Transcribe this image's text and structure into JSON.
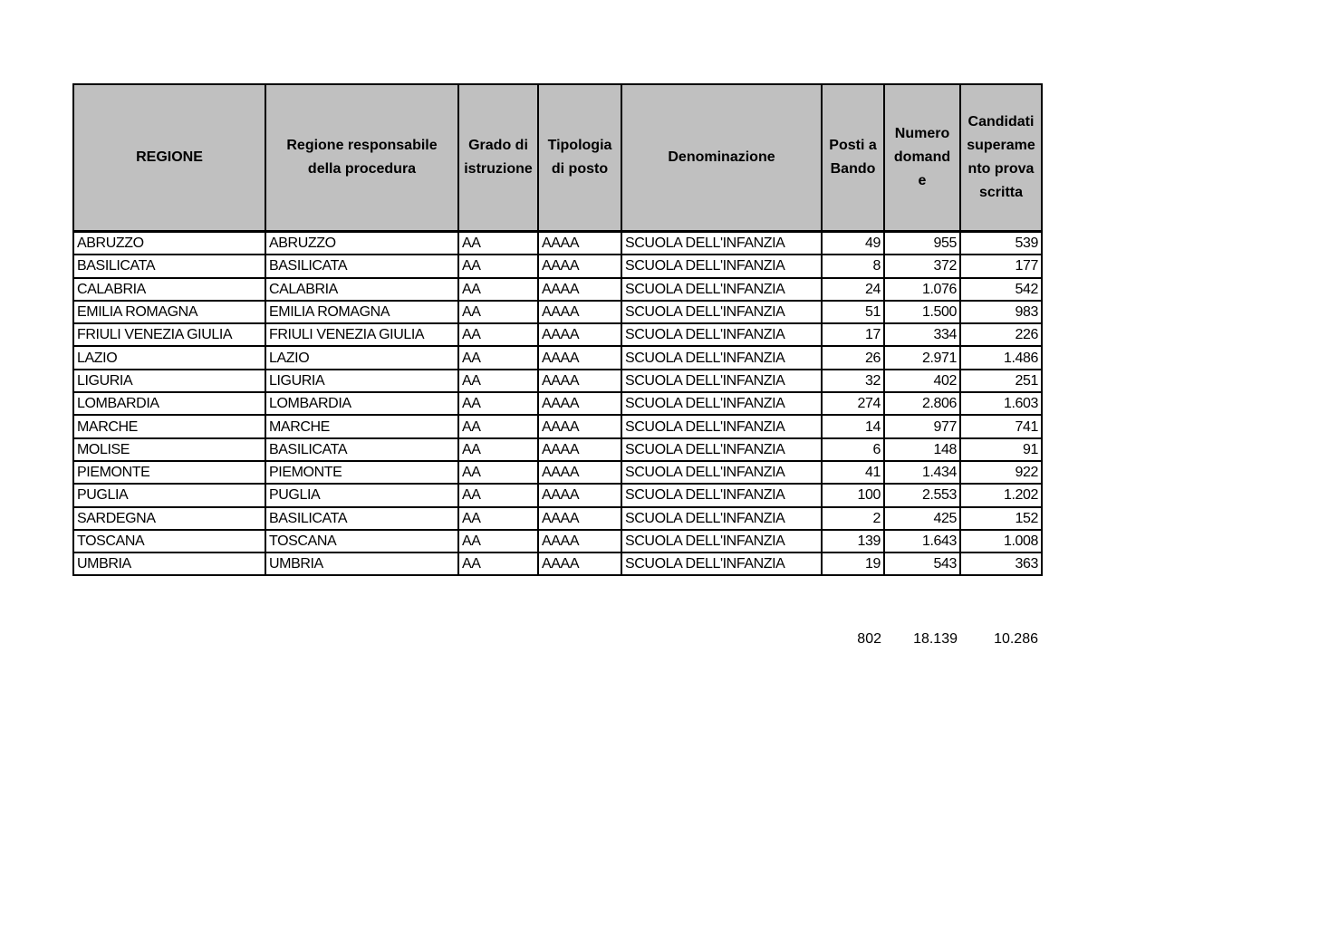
{
  "table": {
    "headers": [
      {
        "lines": [
          "REGIONE"
        ]
      },
      {
        "lines": [
          "Regione responsabile",
          "della procedura"
        ]
      },
      {
        "lines": [
          "Grado di",
          "istruzione"
        ]
      },
      {
        "lines": [
          "Tipologia",
          "di posto"
        ]
      },
      {
        "lines": [
          "Denominazione"
        ]
      },
      {
        "lines": [
          "Posti a",
          "Bando"
        ]
      },
      {
        "lines": [
          "Numero",
          "domand",
          "e"
        ]
      },
      {
        "lines": [
          "Candidati",
          "superame",
          "nto prova",
          "scritta"
        ]
      }
    ],
    "rows": [
      [
        "ABRUZZO",
        "ABRUZZO",
        "AA",
        "AAAA",
        "SCUOLA DELL'INFANZIA",
        "49",
        "955",
        "539"
      ],
      [
        "BASILICATA",
        "BASILICATA",
        "AA",
        "AAAA",
        "SCUOLA DELL'INFANZIA",
        "8",
        "372",
        "177"
      ],
      [
        "CALABRIA",
        "CALABRIA",
        "AA",
        "AAAA",
        "SCUOLA DELL'INFANZIA",
        "24",
        "1.076",
        "542"
      ],
      [
        "EMILIA ROMAGNA",
        "EMILIA ROMAGNA",
        "AA",
        "AAAA",
        "SCUOLA DELL'INFANZIA",
        "51",
        "1.500",
        "983"
      ],
      [
        "FRIULI VENEZIA GIULIA",
        "FRIULI VENEZIA GIULIA",
        "AA",
        "AAAA",
        "SCUOLA DELL'INFANZIA",
        "17",
        "334",
        "226"
      ],
      [
        "LAZIO",
        "LAZIO",
        "AA",
        "AAAA",
        "SCUOLA DELL'INFANZIA",
        "26",
        "2.971",
        "1.486"
      ],
      [
        "LIGURIA",
        "LIGURIA",
        "AA",
        "AAAA",
        "SCUOLA DELL'INFANZIA",
        "32",
        "402",
        "251"
      ],
      [
        "LOMBARDIA",
        "LOMBARDIA",
        "AA",
        "AAAA",
        "SCUOLA DELL'INFANZIA",
        "274",
        "2.806",
        "1.603"
      ],
      [
        "MARCHE",
        "MARCHE",
        "AA",
        "AAAA",
        "SCUOLA DELL'INFANZIA",
        "14",
        "977",
        "741"
      ],
      [
        "MOLISE",
        "BASILICATA",
        "AA",
        "AAAA",
        "SCUOLA DELL'INFANZIA",
        "6",
        "148",
        "91"
      ],
      [
        "PIEMONTE",
        "PIEMONTE",
        "AA",
        "AAAA",
        "SCUOLA DELL'INFANZIA",
        "41",
        "1.434",
        "922"
      ],
      [
        "PUGLIA",
        "PUGLIA",
        "AA",
        "AAAA",
        "SCUOLA DELL'INFANZIA",
        "100",
        "2.553",
        "1.202"
      ],
      [
        "SARDEGNA",
        "BASILICATA",
        "AA",
        "AAAA",
        "SCUOLA DELL'INFANZIA",
        "2",
        "425",
        "152"
      ],
      [
        "TOSCANA",
        "TOSCANA",
        "AA",
        "AAAA",
        "SCUOLA DELL'INFANZIA",
        "139",
        "1.643",
        "1.008"
      ],
      [
        "UMBRIA",
        "UMBRIA",
        "AA",
        "AAAA",
        "SCUOLA DELL'INFANZIA",
        "19",
        "543",
        "363"
      ]
    ],
    "totals": [
      "802",
      "18.139",
      "10.286"
    ]
  }
}
